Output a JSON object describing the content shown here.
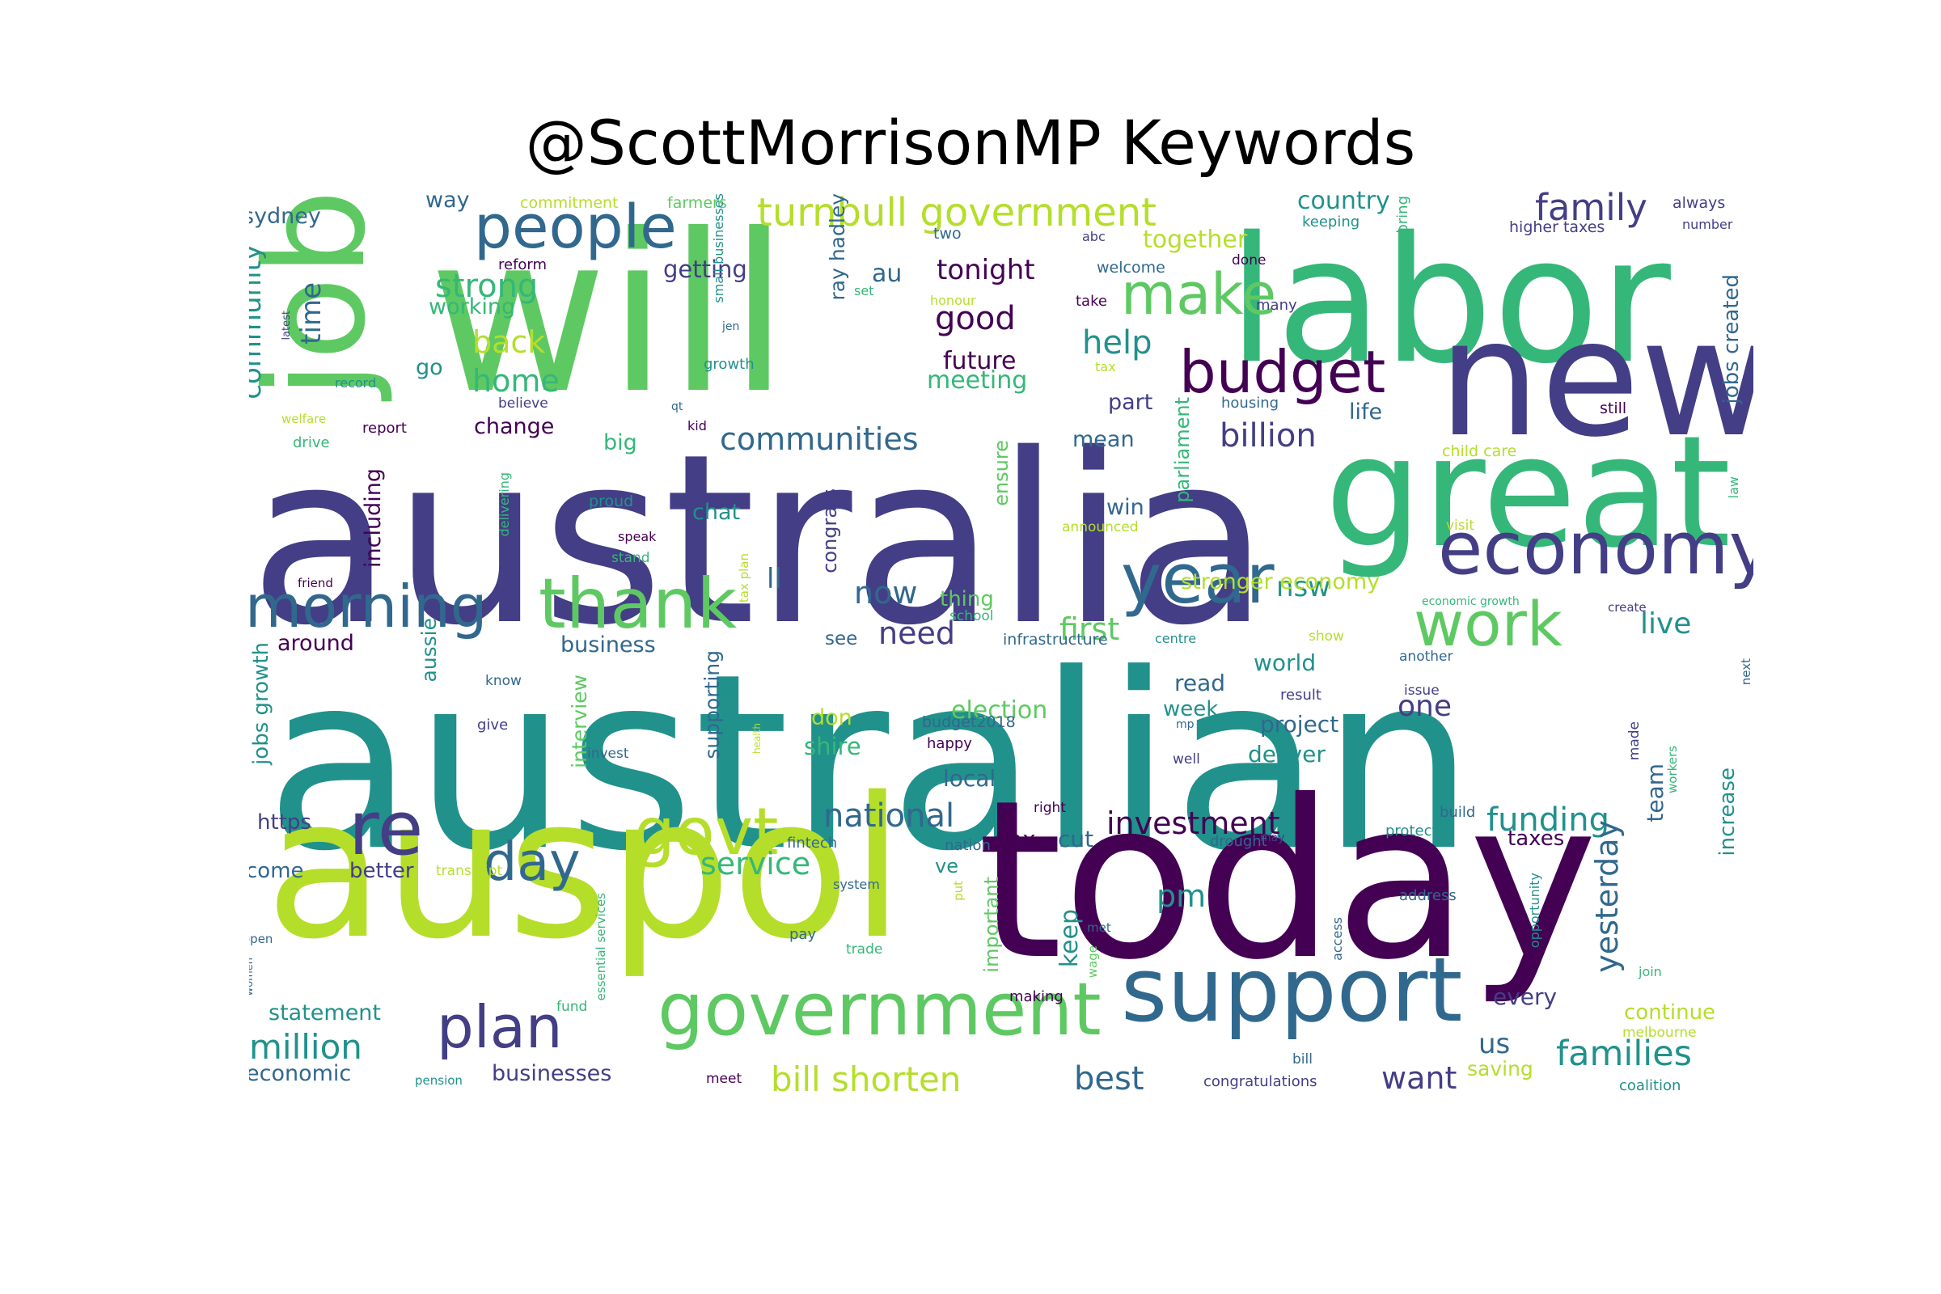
{
  "title": "@ScottMorrisonMP Keywords",
  "colors": {
    "dark_purple": "#440154",
    "indigo": "#433e85",
    "blue": "#31688e",
    "teal": "#21918c",
    "green_teal": "#35b779",
    "green": "#5ec962",
    "yellow_green": "#b5de2b"
  },
  "words": [
    {
      "text": "australian",
      "color": "#21918c"
    },
    {
      "text": "australia",
      "color": "#433e85"
    },
    {
      "text": "will",
      "color": "#5ec962"
    },
    {
      "text": "today",
      "color": "#440154"
    },
    {
      "text": "auspol",
      "color": "#b5de2b"
    },
    {
      "text": "labor",
      "color": "#35b779"
    },
    {
      "text": "new",
      "color": "#433e85"
    },
    {
      "text": "great",
      "color": "#35b779"
    },
    {
      "text": "job",
      "color": "#5ec962"
    },
    {
      "text": "support",
      "color": "#31688e"
    },
    {
      "text": "government",
      "color": "#5ec962"
    },
    {
      "text": "economy",
      "color": "#433e85"
    },
    {
      "text": "year",
      "color": "#31688e"
    },
    {
      "text": "thank",
      "color": "#5ec962"
    },
    {
      "text": "morning",
      "color": "#31688e"
    },
    {
      "text": "people",
      "color": "#31688e"
    },
    {
      "text": "budget",
      "color": "#440154"
    },
    {
      "text": "make",
      "color": "#5ec962"
    },
    {
      "text": "work",
      "color": "#5ec962"
    },
    {
      "text": "plan",
      "color": "#433e85"
    },
    {
      "text": "govt",
      "color": "#b5de2b"
    },
    {
      "text": "re",
      "color": "#433e85"
    },
    {
      "text": "day",
      "color": "#31688e"
    },
    {
      "text": "turnbull government",
      "color": "#b5de2b"
    },
    {
      "text": "family",
      "color": "#433e85"
    },
    {
      "text": "families",
      "color": "#21918c"
    },
    {
      "text": "bill shorten",
      "color": "#b5de2b"
    },
    {
      "text": "best",
      "color": "#31688e"
    },
    {
      "text": "want",
      "color": "#433e85"
    },
    {
      "text": "million",
      "color": "#21918c"
    },
    {
      "text": "national",
      "color": "#31688e"
    },
    {
      "text": "investment",
      "color": "#440154"
    },
    {
      "text": "funding",
      "color": "#21918c"
    },
    {
      "text": "service",
      "color": "#35b779"
    },
    {
      "text": "billion",
      "color": "#433e85"
    },
    {
      "text": "communities",
      "color": "#31688e"
    },
    {
      "text": "good",
      "color": "#440154"
    },
    {
      "text": "help",
      "color": "#21918c"
    },
    {
      "text": "strong",
      "color": "#35b779"
    },
    {
      "text": "back",
      "color": "#b5de2b"
    },
    {
      "text": "home",
      "color": "#35b779"
    },
    {
      "text": "time",
      "color": "#31688e"
    },
    {
      "text": "community",
      "color": "#21918c"
    },
    {
      "text": "now",
      "color": "#31688e"
    },
    {
      "text": "need",
      "color": "#433e85"
    },
    {
      "text": "first",
      "color": "#5ec962"
    },
    {
      "text": "nsw",
      "color": "#21918c"
    },
    {
      "text": "live",
      "color": "#21918c"
    },
    {
      "text": "one",
      "color": "#433e85"
    },
    {
      "text": "ll",
      "color": "#31688e"
    },
    {
      "text": "us",
      "color": "#31688e"
    },
    {
      "text": "pm",
      "color": "#21918c"
    },
    {
      "text": "yesterday",
      "color": "#31688e"
    },
    {
      "text": "tonight",
      "color": "#440154"
    },
    {
      "text": "au",
      "color": "#31688e"
    },
    {
      "text": "future",
      "color": "#440154"
    },
    {
      "text": "meeting",
      "color": "#35b779"
    },
    {
      "text": "together",
      "color": "#b5de2b"
    },
    {
      "text": "country",
      "color": "#21918c"
    },
    {
      "text": "sydney",
      "color": "#31688e"
    },
    {
      "text": "way",
      "color": "#31688e"
    },
    {
      "text": "getting",
      "color": "#433e85"
    },
    {
      "text": "working",
      "color": "#35b779"
    },
    {
      "text": "go",
      "color": "#21918c"
    },
    {
      "text": "change",
      "color": "#440154"
    },
    {
      "text": "big",
      "color": "#35b779"
    },
    {
      "text": "chat",
      "color": "#21918c"
    },
    {
      "text": "mean",
      "color": "#31688e"
    },
    {
      "text": "part",
      "color": "#433e85"
    },
    {
      "text": "life",
      "color": "#31688e"
    },
    {
      "text": "win",
      "color": "#31688e"
    },
    {
      "text": "stronger economy",
      "color": "#b5de2b"
    },
    {
      "text": "thing",
      "color": "#5ec962"
    },
    {
      "text": "around",
      "color": "#440154"
    },
    {
      "text": "business",
      "color": "#31688e"
    },
    {
      "text": "see",
      "color": "#31688e"
    },
    {
      "text": "read",
      "color": "#31688e"
    },
    {
      "text": "world",
      "color": "#21918c"
    },
    {
      "text": "project",
      "color": "#31688e"
    },
    {
      "text": "deliver",
      "color": "#21918c"
    },
    {
      "text": "week",
      "color": "#21918c"
    },
    {
      "text": "election",
      "color": "#5ec962"
    },
    {
      "text": "don",
      "color": "#b5de2b"
    },
    {
      "text": "shire",
      "color": "#35b779"
    },
    {
      "text": "local",
      "color": "#31688e"
    },
    {
      "text": "https",
      "color": "#433e85"
    },
    {
      "text": "come",
      "color": "#31688e"
    },
    {
      "text": "better",
      "color": "#433e85"
    },
    {
      "text": "cut",
      "color": "#31688e"
    },
    {
      "text": "tax",
      "color": "#440154"
    },
    {
      "text": "taxes",
      "color": "#440154"
    },
    {
      "text": "keep",
      "color": "#21918c"
    },
    {
      "text": "every",
      "color": "#433e85"
    },
    {
      "text": "continue",
      "color": "#b5de2b"
    },
    {
      "text": "saving",
      "color": "#b5de2b"
    },
    {
      "text": "statement",
      "color": "#21918c"
    },
    {
      "text": "economic",
      "color": "#31688e"
    },
    {
      "text": "businesses",
      "color": "#433e85"
    },
    {
      "text": "team",
      "color": "#31688e"
    },
    {
      "text": "increase",
      "color": "#21918c"
    },
    {
      "text": "jobs growth",
      "color": "#21918c"
    },
    {
      "text": "jobs created",
      "color": "#31688e"
    },
    {
      "text": "including",
      "color": "#440154"
    },
    {
      "text": "aussie",
      "color": "#21918c"
    },
    {
      "text": "supporting",
      "color": "#31688e"
    },
    {
      "text": "interview",
      "color": "#5ec962"
    },
    {
      "text": "congrats",
      "color": "#433e85"
    },
    {
      "text": "ray hadley",
      "color": "#31688e"
    },
    {
      "text": "parliament",
      "color": "#35b779"
    },
    {
      "text": "ensure",
      "color": "#5ec962"
    },
    {
      "text": "important",
      "color": "#5ec962"
    },
    {
      "text": "commitment",
      "color": "#b5de2b"
    },
    {
      "text": "farmers",
      "color": "#5ec962"
    },
    {
      "text": "two",
      "color": "#31688e"
    },
    {
      "text": "abc",
      "color": "#433e85"
    },
    {
      "text": "bring",
      "color": "#35b779"
    },
    {
      "text": "always",
      "color": "#433e85"
    },
    {
      "text": "number",
      "color": "#433e85"
    },
    {
      "text": "keeping",
      "color": "#21918c"
    },
    {
      "text": "higher taxes",
      "color": "#433e85"
    },
    {
      "text": "reform",
      "color": "#440154"
    },
    {
      "text": "welcome",
      "color": "#31688e"
    },
    {
      "text": "done",
      "color": "#440154"
    },
    {
      "text": "set",
      "color": "#35b779"
    },
    {
      "text": "honour",
      "color": "#b5de2b"
    },
    {
      "text": "take",
      "color": "#440154"
    },
    {
      "text": "many",
      "color": "#433e85"
    },
    {
      "text": "small businesses",
      "color": "#21918c"
    },
    {
      "text": "latest",
      "color": "#433e85"
    },
    {
      "text": "jen",
      "color": "#31688e"
    },
    {
      "text": "growth",
      "color": "#21918c"
    },
    {
      "text": "record",
      "color": "#21918c"
    },
    {
      "text": "believe",
      "color": "#433e85"
    },
    {
      "text": "qt",
      "color": "#31688e"
    },
    {
      "text": "tax",
      "color": "#b5de2b"
    },
    {
      "text": "housing",
      "color": "#31688e"
    },
    {
      "text": "still",
      "color": "#440154"
    },
    {
      "text": "welfare",
      "color": "#b5de2b"
    },
    {
      "text": "report",
      "color": "#440154"
    },
    {
      "text": "drive",
      "color": "#35b779"
    },
    {
      "text": "kid",
      "color": "#440154"
    },
    {
      "text": "child care",
      "color": "#b5de2b"
    },
    {
      "text": "proud",
      "color": "#21918c"
    },
    {
      "text": "speak",
      "color": "#440154"
    },
    {
      "text": "stand",
      "color": "#35b779"
    },
    {
      "text": "delivering",
      "color": "#35b779"
    },
    {
      "text": "announced",
      "color": "#b5de2b"
    },
    {
      "text": "visit",
      "color": "#b5de2b"
    },
    {
      "text": "law",
      "color": "#35b779"
    },
    {
      "text": "friend",
      "color": "#440154"
    },
    {
      "text": "tax plan",
      "color": "#b5de2b"
    },
    {
      "text": "school",
      "color": "#35b779"
    },
    {
      "text": "infrastructure",
      "color": "#31688e"
    },
    {
      "text": "centre",
      "color": "#21918c"
    },
    {
      "text": "show",
      "color": "#b5de2b"
    },
    {
      "text": "another",
      "color": "#31688e"
    },
    {
      "text": "economic growth",
      "color": "#35b779"
    },
    {
      "text": "create",
      "color": "#433e85"
    },
    {
      "text": "know",
      "color": "#31688e"
    },
    {
      "text": "give",
      "color": "#433e85"
    },
    {
      "text": "invest",
      "color": "#31688e"
    },
    {
      "text": "health",
      "color": "#b5de2b"
    },
    {
      "text": "budget2018",
      "color": "#31688e"
    },
    {
      "text": "mp",
      "color": "#31688e"
    },
    {
      "text": "happy",
      "color": "#440154"
    },
    {
      "text": "well",
      "color": "#433e85"
    },
    {
      "text": "result",
      "color": "#433e85"
    },
    {
      "text": "issue",
      "color": "#433e85"
    },
    {
      "text": "made",
      "color": "#433e85"
    },
    {
      "text": "workers",
      "color": "#35b779"
    },
    {
      "text": "next",
      "color": "#31688e"
    },
    {
      "text": "right",
      "color": "#440154"
    },
    {
      "text": "build",
      "color": "#31688e"
    },
    {
      "text": "protect",
      "color": "#21918c"
    },
    {
      "text": "may",
      "color": "#433e85"
    },
    {
      "text": "drought",
      "color": "#31688e"
    },
    {
      "text": "nation",
      "color": "#31688e"
    },
    {
      "text": "fintech",
      "color": "#31688e"
    },
    {
      "text": "ve",
      "color": "#21918c"
    },
    {
      "text": "transcript",
      "color": "#b5de2b"
    },
    {
      "text": "system",
      "color": "#31688e"
    },
    {
      "text": "put",
      "color": "#b5de2b"
    },
    {
      "text": "address",
      "color": "#31688e"
    },
    {
      "text": "opportunity",
      "color": "#21918c"
    },
    {
      "text": "access",
      "color": "#31688e"
    },
    {
      "text": "wage",
      "color": "#5ec962"
    },
    {
      "text": "met",
      "color": "#31688e"
    },
    {
      "text": "open",
      "color": "#31688e"
    },
    {
      "text": "pay",
      "color": "#31688e"
    },
    {
      "text": "trade",
      "color": "#35b779"
    },
    {
      "text": "join",
      "color": "#35b779"
    },
    {
      "text": "making",
      "color": "#440154"
    },
    {
      "text": "fund",
      "color": "#35b779"
    },
    {
      "text": "essential services",
      "color": "#35b779"
    },
    {
      "text": "women",
      "color": "#31688e"
    },
    {
      "text": "melbourne",
      "color": "#b5de2b"
    },
    {
      "text": "bill",
      "color": "#31688e"
    },
    {
      "text": "pension",
      "color": "#21918c"
    },
    {
      "text": "meet",
      "color": "#440154"
    },
    {
      "text": "congratulations",
      "color": "#433e85"
    },
    {
      "text": "coalition",
      "color": "#21918c"
    }
  ]
}
